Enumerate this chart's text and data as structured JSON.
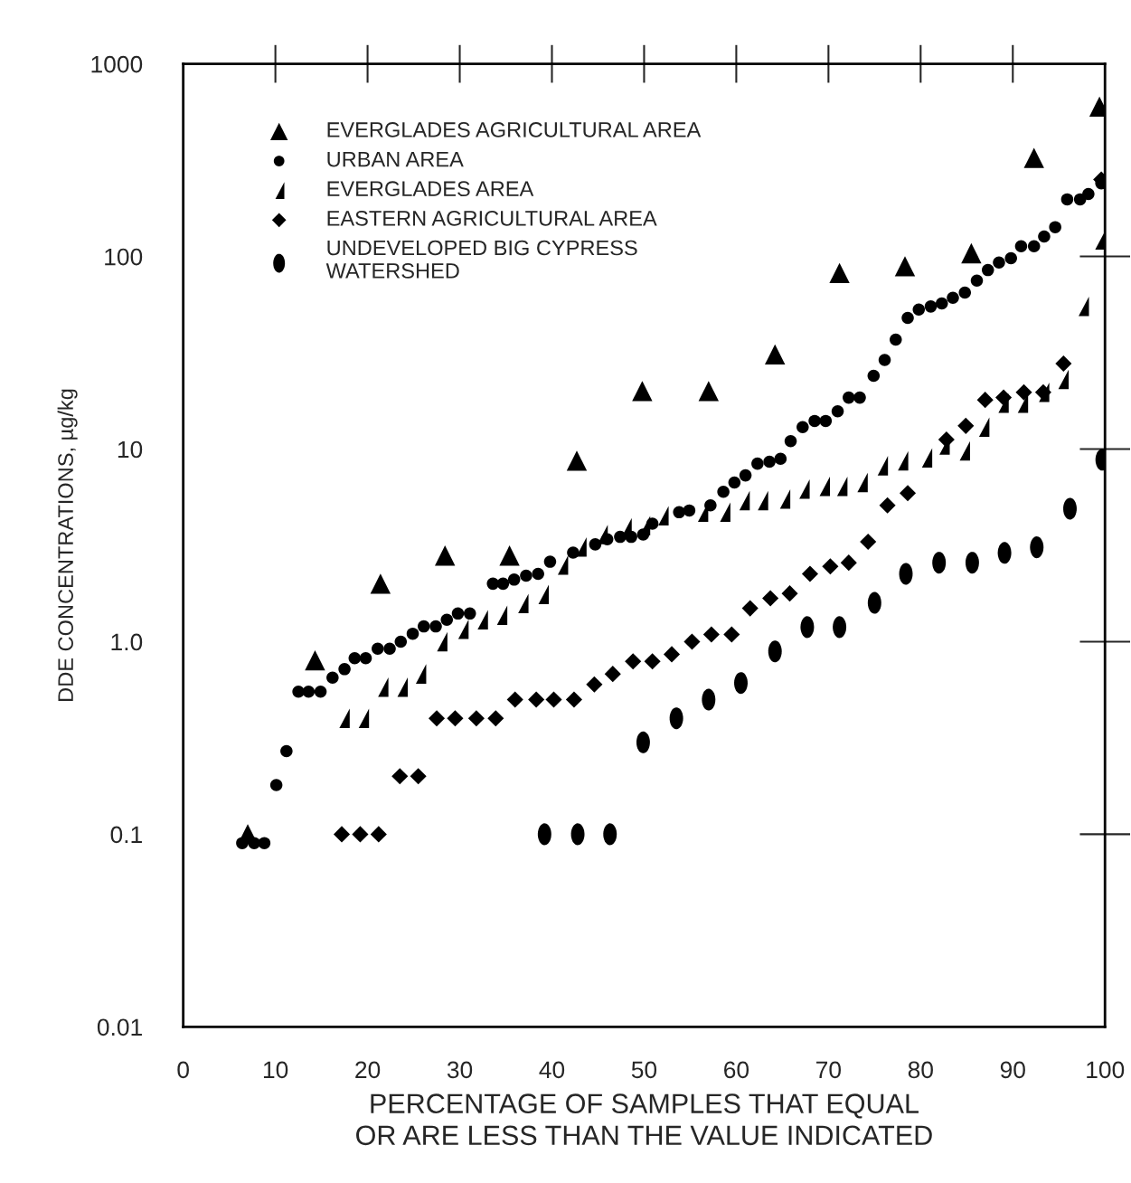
{
  "chart_data": {
    "type": "scatter",
    "xlabel": "PERCENTAGE OF SAMPLES THAT EQUAL\nOR ARE LESS THAN THE VALUE INDICATED",
    "ylabel": "DDE CONCENTRATIONS, µg/kg",
    "log": "y",
    "xlim": [
      0,
      100
    ],
    "ylim": [
      0.01,
      1000
    ],
    "xticks": [
      0,
      10,
      20,
      30,
      40,
      50,
      60,
      70,
      80,
      90,
      100
    ],
    "yticks": [
      0.01,
      0.1,
      {
        "value": 1,
        "label": "1.0"
      },
      10,
      100,
      1000
    ],
    "grid": false,
    "legend": "top left",
    "series": [
      {
        "name": "EVERGLADES AGRICULTURAL AREA",
        "color": "#000000",
        "marker": "triangle",
        "x": [
          7.0,
          14.3,
          21.4,
          28.4,
          35.4,
          42.7,
          49.8,
          57.0,
          64.2,
          71.2,
          78.3,
          85.5,
          92.3,
          99.4
        ],
        "values": [
          0.1,
          0.8,
          2.0,
          2.8,
          2.8,
          8.7,
          20,
          20,
          31,
          82,
          89,
          104,
          325,
          600
        ]
      },
      {
        "name": "URBAN AREA",
        "color": "#000000",
        "marker": "circle",
        "x": [
          6.4,
          7.7,
          8.8,
          10.1,
          11.2,
          12.5,
          13.6,
          14.9,
          16.2,
          17.5,
          18.6,
          19.8,
          21.1,
          22.4,
          23.6,
          24.9,
          26.1,
          27.4,
          28.6,
          29.8,
          31.1,
          33.6,
          34.7,
          35.9,
          37.2,
          38.5,
          39.8,
          42.3,
          44.7,
          46.0,
          47.4,
          48.6,
          49.9,
          50.9,
          53.8,
          54.9,
          57.2,
          58.6,
          59.8,
          61.0,
          62.3,
          63.6,
          64.8,
          65.9,
          67.2,
          68.5,
          69.7,
          71.0,
          72.2,
          73.4,
          74.9,
          76.1,
          77.3,
          78.6,
          79.8,
          81.1,
          82.3,
          83.5,
          84.8,
          86.1,
          87.3,
          88.5,
          89.8,
          90.9,
          92.3,
          93.4,
          94.6,
          95.9,
          97.3,
          98.2,
          99.6
        ],
        "values": [
          0.09,
          0.09,
          0.09,
          0.18,
          0.27,
          0.55,
          0.55,
          0.55,
          0.65,
          0.72,
          0.82,
          0.82,
          0.92,
          0.92,
          1.0,
          1.1,
          1.2,
          1.2,
          1.3,
          1.4,
          1.4,
          2.0,
          2.0,
          2.1,
          2.2,
          2.25,
          2.6,
          2.9,
          3.2,
          3.4,
          3.5,
          3.5,
          3.6,
          4.1,
          4.7,
          4.8,
          5.1,
          6.0,
          6.7,
          7.3,
          8.4,
          8.6,
          8.9,
          11,
          13,
          14,
          14,
          15.7,
          18.5,
          18.5,
          24,
          29,
          37,
          48,
          53,
          55,
          57,
          61,
          65,
          75,
          85,
          93,
          98,
          113,
          113,
          127,
          142,
          198,
          198,
          211,
          240
        ]
      },
      {
        "name": "EVERGLADES AREA",
        "color": "#000000",
        "marker": "triangle",
        "x": [
          17.4,
          19.5,
          21.6,
          23.7,
          25.7,
          28.0,
          30.3,
          32.4,
          34.5,
          36.8,
          39.0,
          41.1,
          43.1,
          45.4,
          48.0,
          50.0,
          52.0,
          56.3,
          58.7,
          60.8,
          62.8,
          65.2,
          67.3,
          69.5,
          71.4,
          73.6,
          75.8,
          78.0,
          80.6,
          82.5,
          84.7,
          86.8,
          88.9,
          91.0,
          93.3,
          95.4,
          97.6,
          99.4
        ],
        "values": [
          0.4,
          0.4,
          0.58,
          0.58,
          0.68,
          1.0,
          1.16,
          1.3,
          1.37,
          1.58,
          1.76,
          2.5,
          3.1,
          3.6,
          3.9,
          4.0,
          4.5,
          4.7,
          4.7,
          5.4,
          5.4,
          5.5,
          6.2,
          6.4,
          6.4,
          6.7,
          8.2,
          8.7,
          9.0,
          10.5,
          9.8,
          13,
          17.3,
          17.3,
          19.7,
          23,
          55,
          122
        ]
      },
      {
        "name": "EASTERN AGRICULTURAL AREA",
        "color": "#000000",
        "marker": "diamond",
        "x": [
          17.2,
          19.2,
          21.2,
          23.5,
          25.5,
          27.5,
          29.5,
          31.8,
          33.9,
          36.0,
          38.3,
          40.2,
          42.4,
          44.6,
          46.6,
          48.8,
          50.9,
          53.0,
          55.2,
          57.3,
          59.5,
          61.5,
          63.7,
          65.8,
          68.0,
          70.2,
          72.2,
          74.3,
          76.4,
          78.6,
          82.8,
          84.9,
          87.0,
          89.0,
          91.2,
          93.3,
          95.5,
          99.6
        ],
        "values": [
          0.1,
          0.1,
          0.1,
          0.2,
          0.2,
          0.4,
          0.4,
          0.4,
          0.4,
          0.5,
          0.5,
          0.5,
          0.5,
          0.6,
          0.68,
          0.79,
          0.79,
          0.86,
          1.0,
          1.09,
          1.09,
          1.49,
          1.68,
          1.78,
          2.25,
          2.46,
          2.57,
          3.3,
          5.1,
          5.9,
          11.2,
          13.2,
          18,
          18.5,
          19.7,
          19.7,
          27.8,
          251
        ]
      },
      {
        "name": "UNDEVELOPED BIG CYPRESS\nWATERSHED",
        "color": "#000000",
        "marker": "circle",
        "x": [
          39.2,
          42.8,
          46.3,
          49.9,
          53.5,
          57.0,
          60.5,
          64.2,
          67.7,
          71.2,
          75.0,
          78.4,
          82.0,
          85.6,
          89.1,
          92.6,
          96.2,
          99.7
        ],
        "values": [
          0.1,
          0.1,
          0.1,
          0.3,
          0.4,
          0.5,
          0.61,
          0.89,
          1.19,
          1.19,
          1.59,
          2.25,
          2.57,
          2.57,
          2.89,
          3.09,
          4.9,
          8.8
        ]
      }
    ]
  }
}
